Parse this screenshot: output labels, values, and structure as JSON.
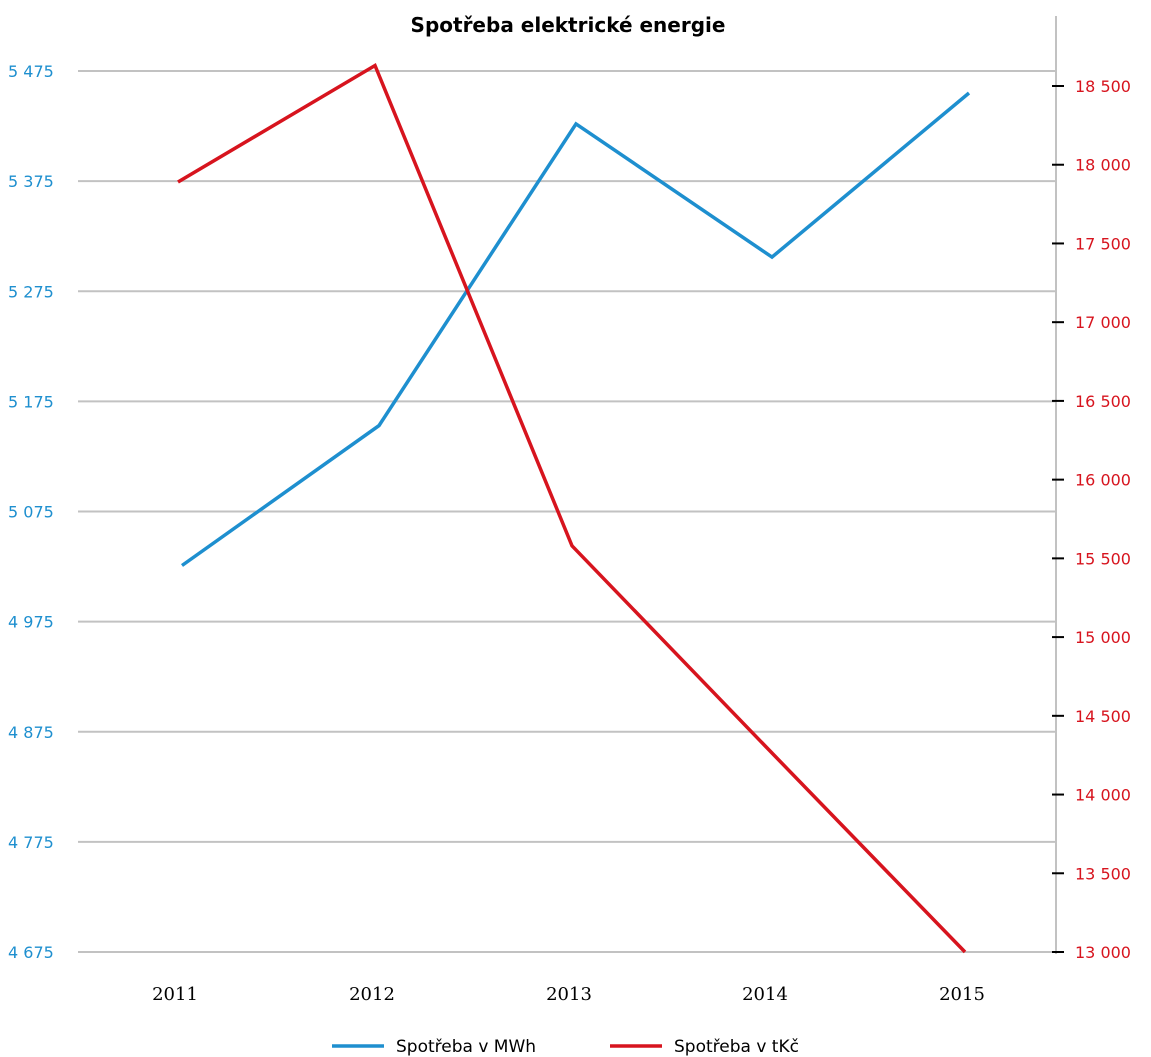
{
  "chart_data": {
    "type": "line",
    "title": "Spotřeba elektrické energie",
    "categories": [
      "2011",
      "2012",
      "2013",
      "2014",
      "2015"
    ],
    "y_left": {
      "ticks": [
        4675,
        4775,
        4875,
        4975,
        5075,
        5175,
        5275,
        5375,
        5475
      ],
      "tick_labels": [
        "4 675",
        "4 775",
        "4 875",
        "4 975",
        "5 075",
        "5 175",
        "5 275",
        "5 375",
        "5 475"
      ],
      "ylim": [
        4675,
        5475
      ]
    },
    "y_right": {
      "ticks": [
        13000,
        13500,
        14000,
        14500,
        15000,
        15500,
        16000,
        16500,
        17000,
        17500,
        18000,
        18500
      ],
      "tick_labels": [
        "13 000",
        "13 500",
        "14 000",
        "14 500",
        "15 000",
        "15 500",
        "16 000",
        "16 500",
        "17 000",
        "17 500",
        "18 000",
        "18 500"
      ],
      "ylim": [
        13000,
        18500
      ]
    },
    "grid": true,
    "legend_position": "bottom",
    "series": [
      {
        "name": "Spotřeba v MWh",
        "axis": "left",
        "color": "#1e8fcf",
        "values": [
          5026,
          5153,
          5427,
          5306,
          5455
        ]
      },
      {
        "name": "Spotřeba v tKč",
        "axis": "right",
        "color": "#d7141e",
        "values": [
          17890,
          18630,
          15580,
          14290,
          13000
        ]
      }
    ]
  }
}
